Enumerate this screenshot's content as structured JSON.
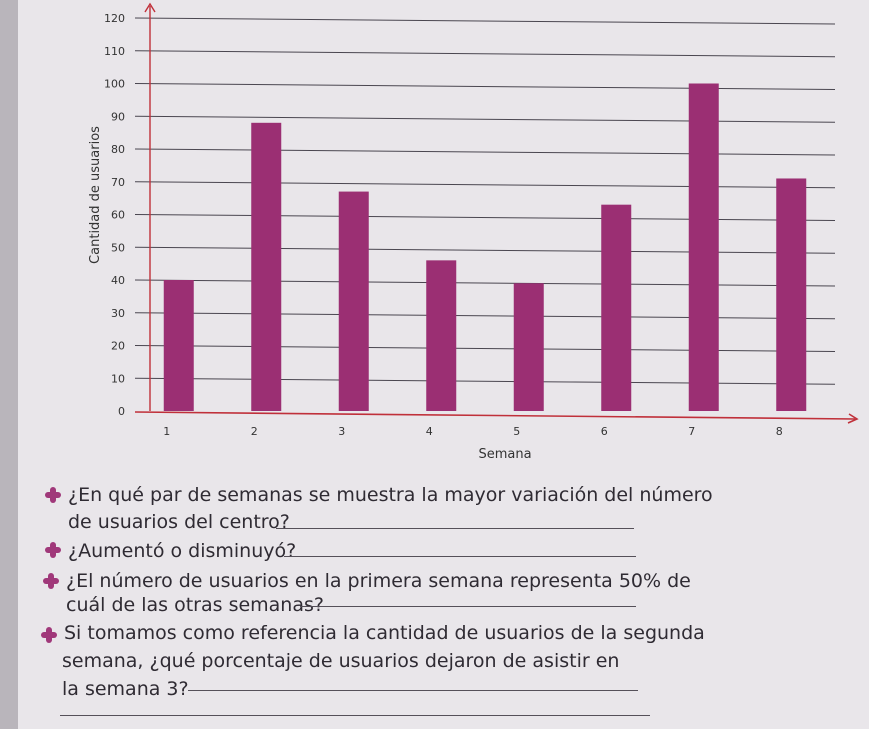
{
  "chart_data": {
    "type": "bar",
    "categories": [
      "1",
      "2",
      "3",
      "4",
      "5",
      "6",
      "7",
      "8"
    ],
    "values": [
      40,
      88,
      67,
      46,
      39,
      63,
      100,
      71
    ],
    "xlabel": "Semana",
    "ylabel": "Cantidad de usuarios",
    "ylim": [
      0,
      120
    ],
    "yticks": [
      0,
      10,
      20,
      30,
      40,
      50,
      60,
      70,
      80,
      90,
      100,
      110,
      120
    ],
    "grid": true,
    "colors": {
      "bar": "#9b2f73",
      "axis": "#c0303a",
      "grid": "#4a4650"
    }
  },
  "questions": [
    {
      "line1": "¿En qué par de semanas se muestra la mayor variación del número",
      "line2": "de usuarios del centro?"
    },
    {
      "line1": "¿Aumentó o disminuyó?"
    },
    {
      "line1": "¿El número de usuarios en la primera semana representa 50% de",
      "line2": "cuál de las otras semanas?"
    },
    {
      "line1": "Si tomamos como referencia la cantidad de usuarios de la segunda",
      "line2": "semana, ¿qué porcentaje de usuarios dejaron de asistir en",
      "line3": "la semana 3?"
    }
  ]
}
